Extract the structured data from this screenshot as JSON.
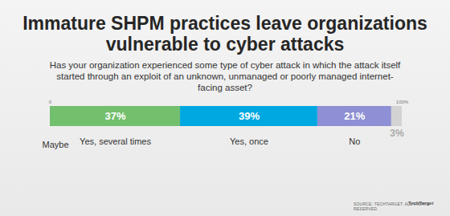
{
  "chart_data": {
    "type": "bar",
    "orientation": "horizontal",
    "stacked": true,
    "title": "Immature SHPM practices leave organizations vulnerable to cyber attacks",
    "subtitle": "Has your organization experienced some type of cyber attack in which the attack itself started through an exploit of an unknown, unmanaged or poorly managed internet-facing asset?",
    "categories": [
      "Yes, several times",
      "Yes, once",
      "No",
      "Maybe"
    ],
    "values": [
      37,
      39,
      21,
      3
    ],
    "value_labels": [
      "37%",
      "39%",
      "21%",
      "3%"
    ],
    "data_labels": true,
    "colors": [
      "#72bf6d",
      "#00a8e1",
      "#8e8fd4",
      "#d3d3d3"
    ],
    "xlim": [
      0,
      100
    ],
    "xticks": [
      0,
      {
        "value": 100,
        "label": "100%"
      }
    ],
    "grid": false,
    "source": "SOURCE: TECHTARGET. ALL RIGHTS RESERVED.",
    "source_logo": "TechTarget"
  }
}
